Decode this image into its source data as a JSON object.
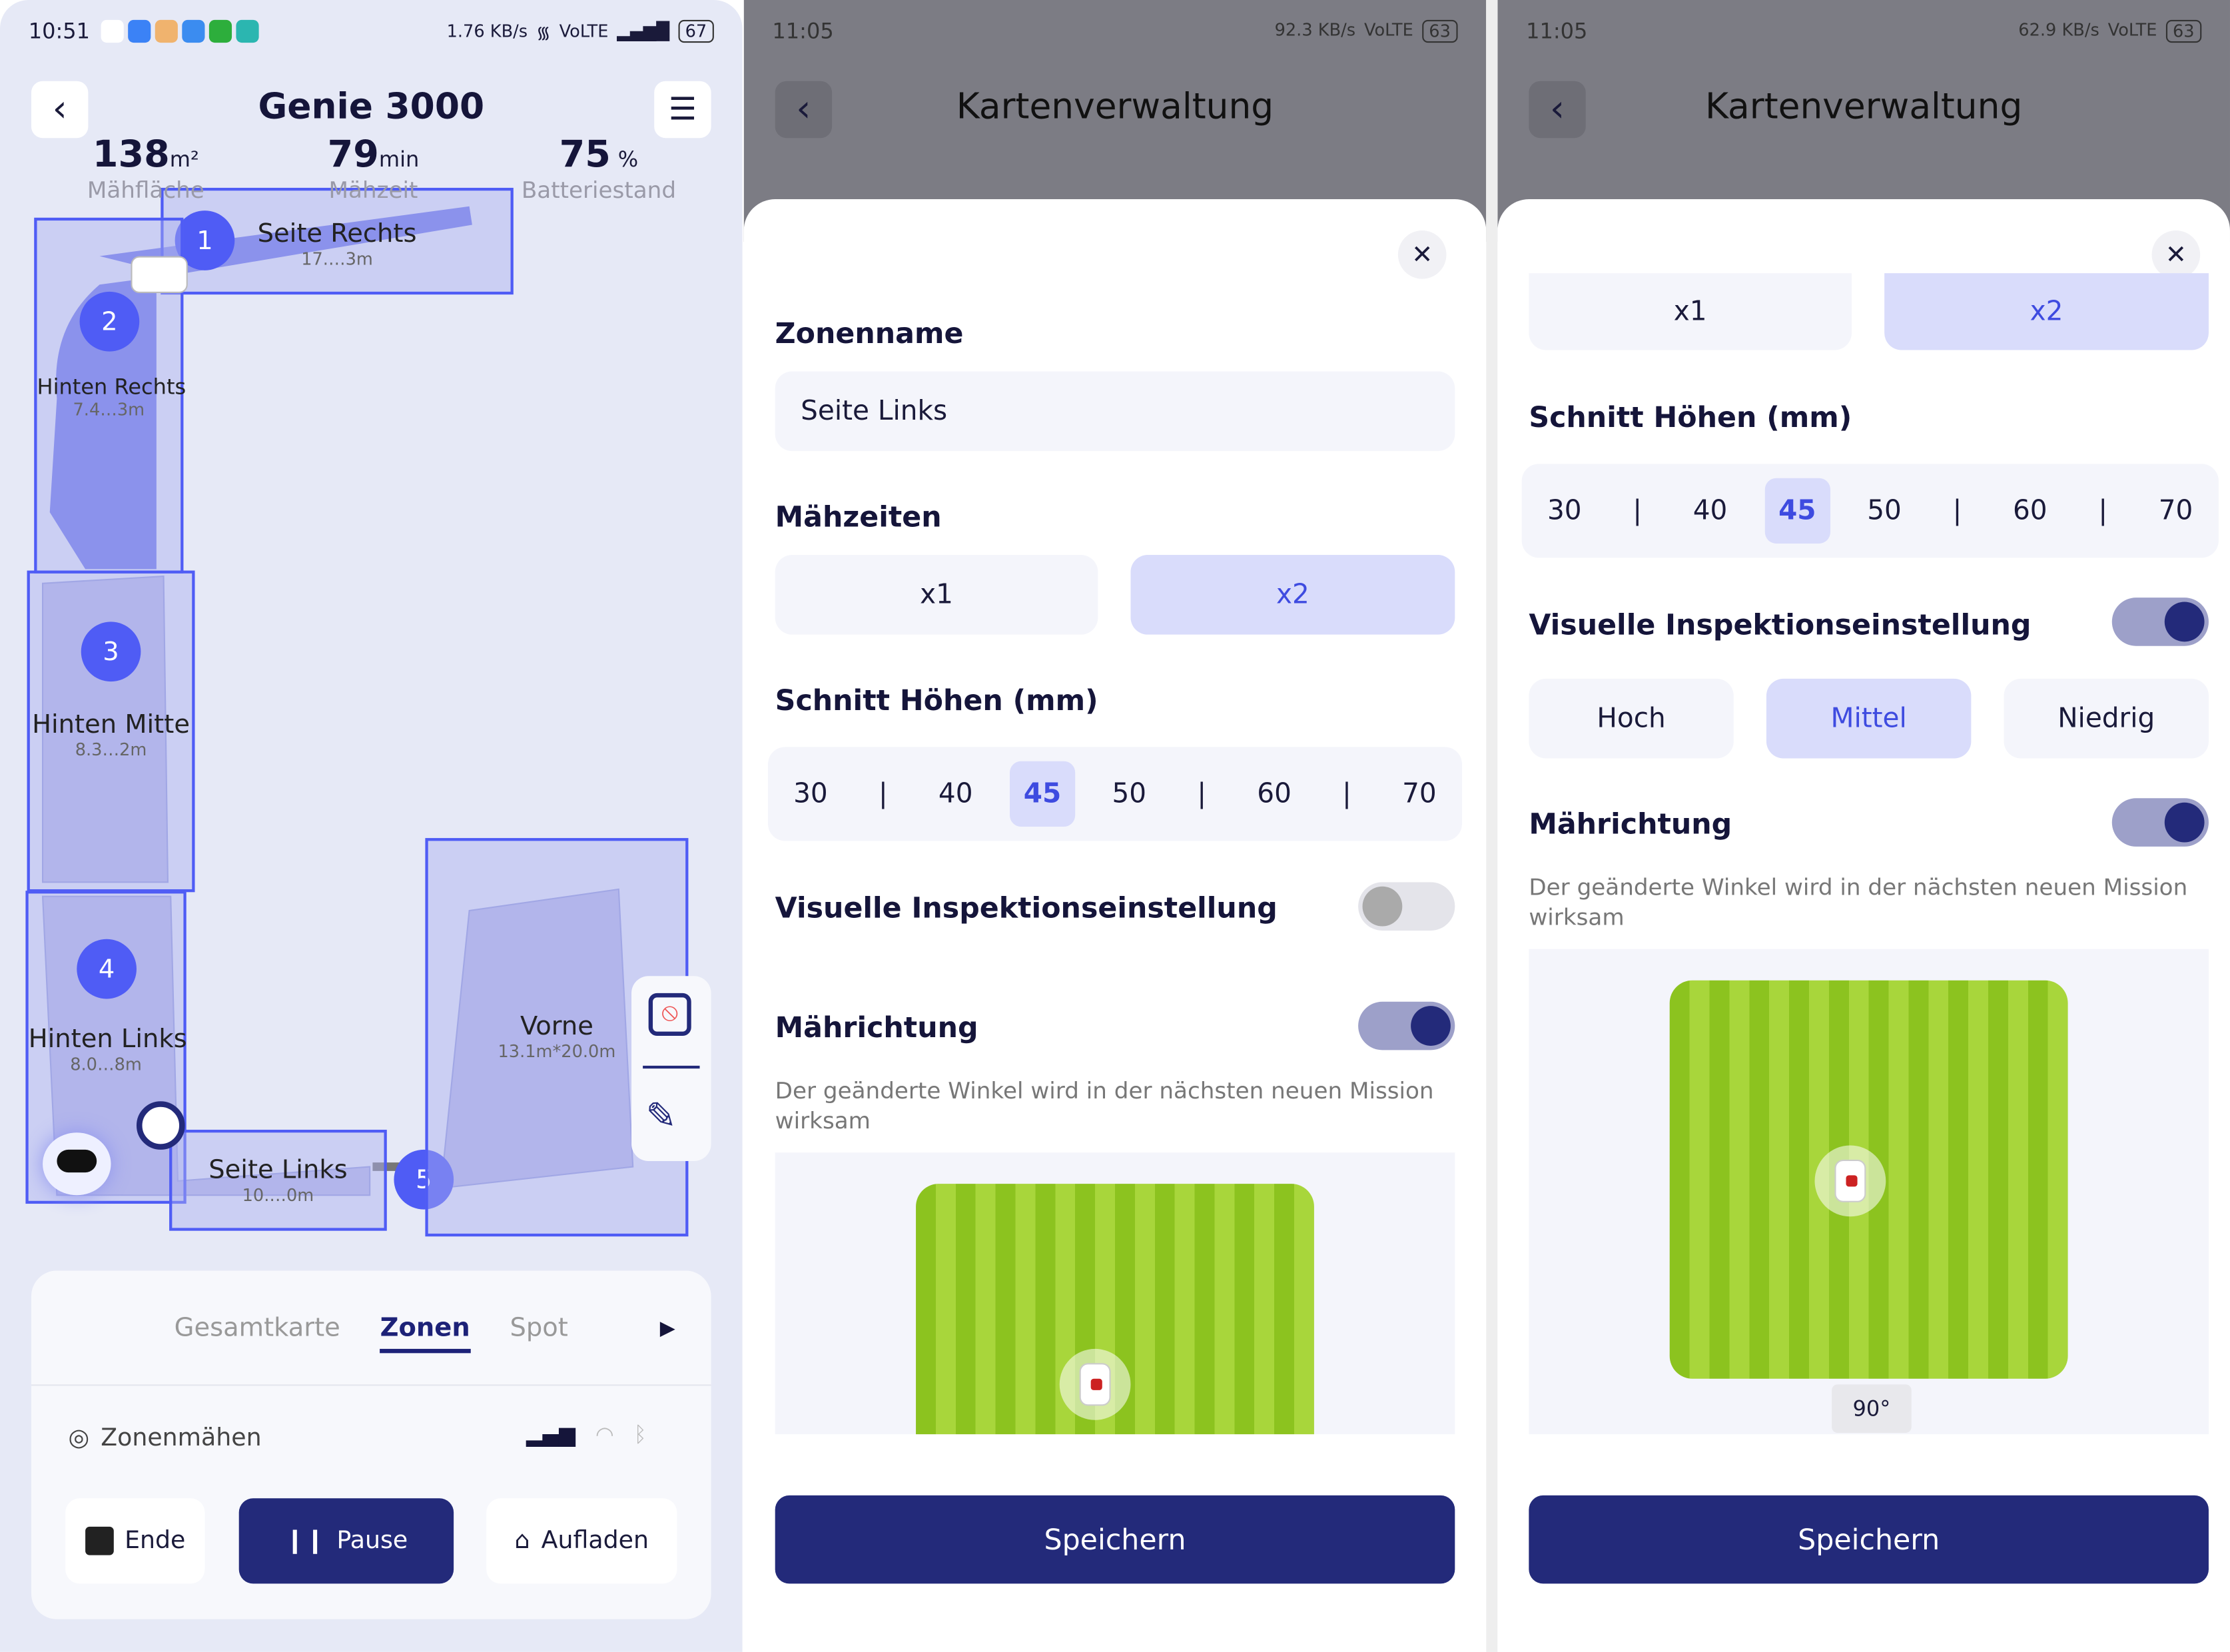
{
  "panel1": {
    "status": {
      "time": "10:51",
      "speed": "1.76 KB/s",
      "network": "VoLTE",
      "battery": "67"
    },
    "title": "Genie 3000",
    "stats": [
      {
        "value": "138",
        "unit": "m²",
        "label": "Mähfläche"
      },
      {
        "value": "79",
        "unit": "min",
        "label": "Mähzeit"
      },
      {
        "value": "75",
        "unit": "%",
        "label": "Batteriestand"
      }
    ],
    "zones": [
      {
        "num": "1",
        "name": "Seite Rechts",
        "dim": "17.…3m"
      },
      {
        "num": "2",
        "name": "Hinten Rechts",
        "dim": "7.4…3m"
      },
      {
        "num": "3",
        "name": "Hinten Mitte",
        "dim": "8.3…2m"
      },
      {
        "num": "4",
        "name": "Hinten Links",
        "dim": "8.0…8m"
      },
      {
        "num": "5",
        "name": "Seite Links",
        "dim": "10.…0m"
      },
      {
        "num": "",
        "name": "Vorne",
        "dim": "13.1m*20.0m"
      }
    ],
    "tabs": [
      "Gesamtkarte",
      "Zonen",
      "Spot"
    ],
    "active_tab": "Zonen",
    "mode": "Zonenmähen",
    "buttons": {
      "end": "Ende",
      "pause": "Pause",
      "charge": "Aufladen"
    },
    "colors": {
      "zone": "#4f5cf5",
      "primary": "#232a7a"
    }
  },
  "panel2": {
    "status": {
      "time": "11:05",
      "speed": "92.3 KB/s",
      "network": "VoLTE",
      "battery": "63"
    },
    "title": "Kartenverwaltung",
    "zone_name_label": "Zonenname",
    "zone_name_value": "Seite Links",
    "mow_times_label": "Mähzeiten",
    "mow_times": [
      "x1",
      "x2"
    ],
    "mow_times_selected": "x2",
    "heights_label": "Schnitt Höhen (mm)",
    "heights": [
      "30",
      "|",
      "40",
      "45",
      "50",
      "|",
      "60",
      "|",
      "70"
    ],
    "height_selected": "45",
    "visual_label": "Visuelle Inspektionseinstellung",
    "visual_on": false,
    "direction_label": "Mährichtung",
    "direction_on": true,
    "direction_note": "Der geänderte Winkel wird in der nächsten neuen Mission wirksam",
    "save": "Speichern"
  },
  "panel3": {
    "status": {
      "time": "11:05",
      "speed": "62.9 KB/s",
      "network": "VoLTE",
      "battery": "63"
    },
    "title": "Kartenverwaltung",
    "mow_times": [
      "x1",
      "x2"
    ],
    "mow_times_selected": "x2",
    "heights_label": "Schnitt Höhen (mm)",
    "heights": [
      "30",
      "|",
      "40",
      "45",
      "50",
      "|",
      "60",
      "|",
      "70"
    ],
    "height_selected": "45",
    "visual_label": "Visuelle Inspektionseinstellung",
    "visual_on": true,
    "visual_levels": [
      "Hoch",
      "Mittel",
      "Niedrig"
    ],
    "visual_selected": "Mittel",
    "direction_label": "Mährichtung",
    "direction_on": true,
    "direction_note": "Der geänderte Winkel wird in der nächsten neuen Mission wirksam",
    "angle": "90°",
    "save": "Speichern"
  }
}
